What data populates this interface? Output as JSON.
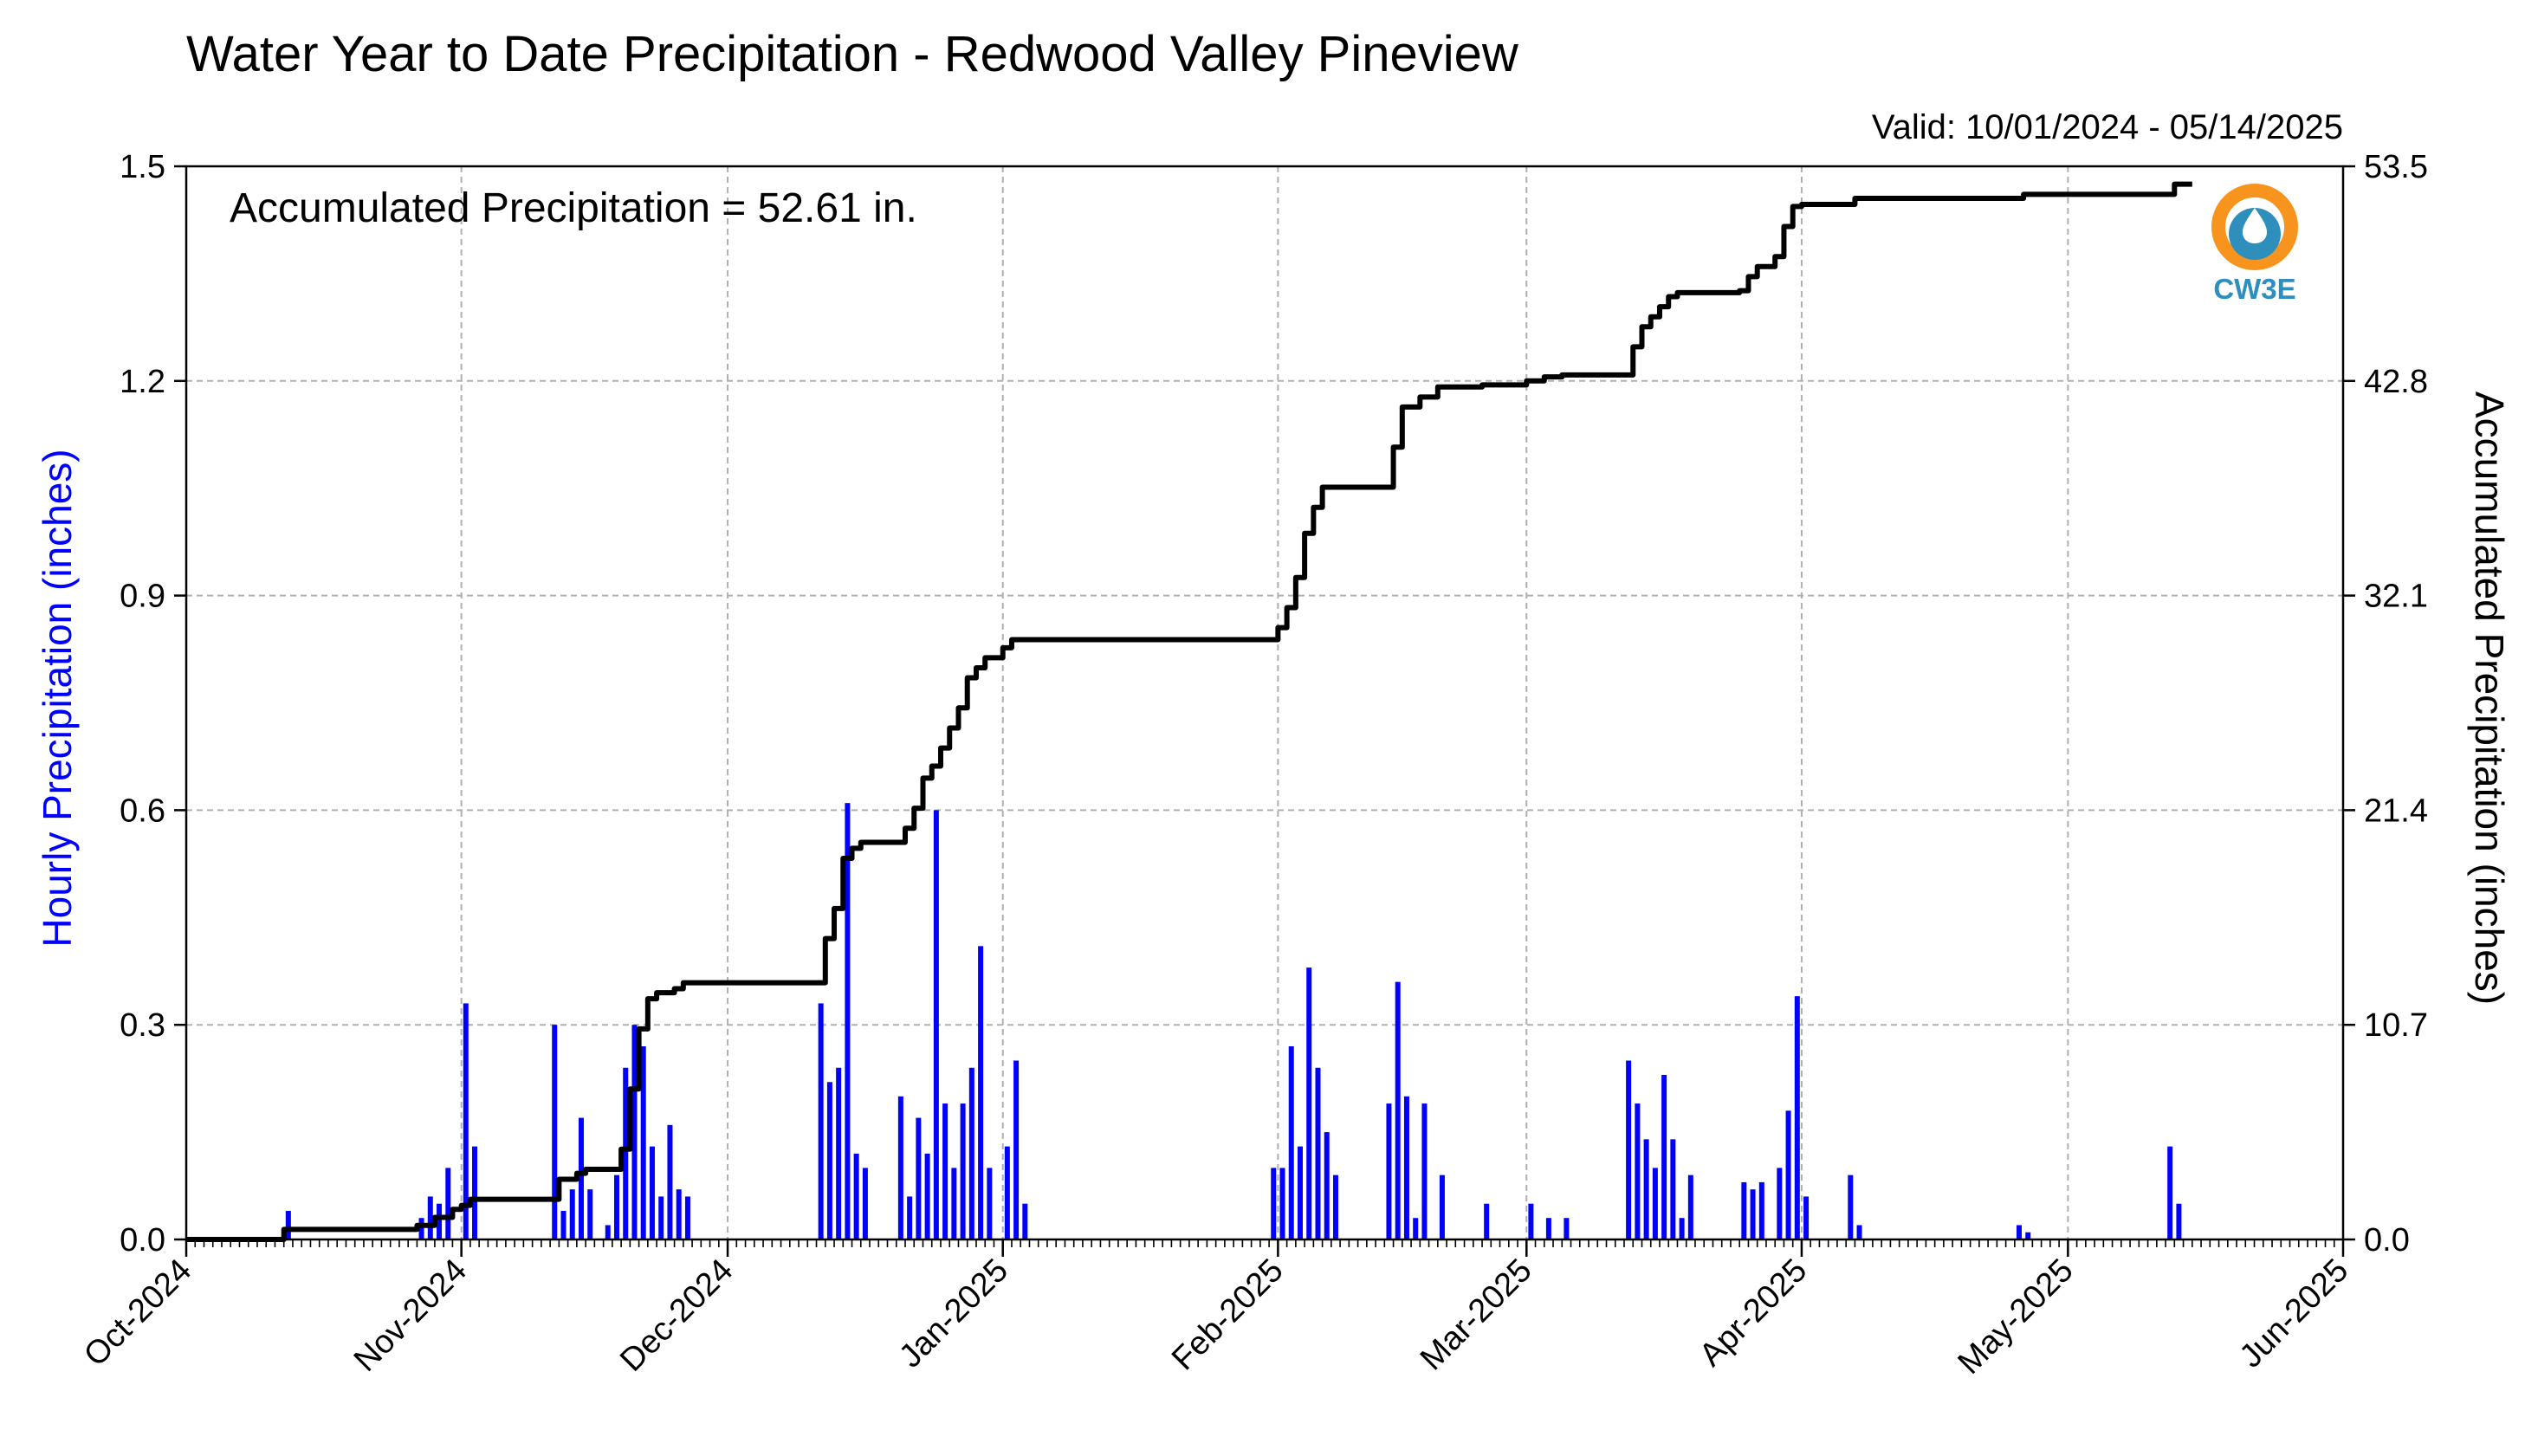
{
  "chart_data": {
    "type": "bar+line",
    "title": "Water Year to Date Precipitation - Redwood Valley Pineview",
    "valid_range": "Valid: 10/01/2024 - 05/14/2025",
    "annotation": "Accumulated Precipitation = 52.61 in.",
    "ylabel_left": "Hourly Precipitation (inches)",
    "ylabel_right": "Accumulated Precipitation (inches)",
    "xlim": [
      "2024-10-01",
      "2025-06-01"
    ],
    "ylim_left": [
      0,
      1.5
    ],
    "ylim_right": [
      0,
      53.5
    ],
    "grid": true,
    "x_ticks": [
      "Oct-2024",
      "Nov-2024",
      "Dec-2024",
      "Jan-2025",
      "Feb-2025",
      "Mar-2025",
      "Apr-2025",
      "May-2025",
      "Jun-2025"
    ],
    "y_ticks_left": [
      "0.0",
      "0.3",
      "0.6",
      "0.9",
      "1.2",
      "1.5"
    ],
    "y_ticks_right": [
      "0.0",
      "10.7",
      "21.4",
      "32.1",
      "42.8",
      "53.5"
    ],
    "colors": {
      "hourly": "#0000ff",
      "accumulated": "#000000",
      "grid": "#b0b0b0"
    },
    "logo": {
      "text": "CW3E",
      "colors": [
        "#f7941d",
        "#2e8fbd"
      ]
    },
    "series": [
      {
        "name": "Hourly Precipitation",
        "type": "bar",
        "axis": "left",
        "x": [
          "2024-10-12",
          "2024-10-27",
          "2024-10-28",
          "2024-10-29",
          "2024-10-30",
          "2024-11-01",
          "2024-11-02",
          "2024-11-11",
          "2024-11-12",
          "2024-11-13",
          "2024-11-14",
          "2024-11-15",
          "2024-11-17",
          "2024-11-18",
          "2024-11-19",
          "2024-11-20",
          "2024-11-21",
          "2024-11-22",
          "2024-11-23",
          "2024-11-24",
          "2024-11-25",
          "2024-11-26",
          "2024-12-11",
          "2024-12-12",
          "2024-12-13",
          "2024-12-14",
          "2024-12-15",
          "2024-12-16",
          "2024-12-20",
          "2024-12-21",
          "2024-12-22",
          "2024-12-23",
          "2024-12-24",
          "2024-12-25",
          "2024-12-26",
          "2024-12-27",
          "2024-12-28",
          "2024-12-29",
          "2024-12-30",
          "2025-01-01",
          "2025-01-02",
          "2025-01-03",
          "2025-01-31",
          "2025-02-01",
          "2025-02-02",
          "2025-02-03",
          "2025-02-04",
          "2025-02-05",
          "2025-02-06",
          "2025-02-07",
          "2025-02-13",
          "2025-02-14",
          "2025-02-15",
          "2025-02-16",
          "2025-02-17",
          "2025-02-19",
          "2025-02-24",
          "2025-03-01",
          "2025-03-03",
          "2025-03-05",
          "2025-03-12",
          "2025-03-13",
          "2025-03-14",
          "2025-03-15",
          "2025-03-16",
          "2025-03-17",
          "2025-03-18",
          "2025-03-19",
          "2025-03-25",
          "2025-03-26",
          "2025-03-27",
          "2025-03-29",
          "2025-03-30",
          "2025-03-31",
          "2025-04-01",
          "2025-04-06",
          "2025-04-07",
          "2025-04-25",
          "2025-04-26",
          "2025-05-12",
          "2025-05-13"
        ],
        "values": [
          0.04,
          0.03,
          0.06,
          0.05,
          0.1,
          0.33,
          0.13,
          0.3,
          0.04,
          0.07,
          0.17,
          0.07,
          0.02,
          0.09,
          0.24,
          0.3,
          0.27,
          0.13,
          0.06,
          0.16,
          0.07,
          0.06,
          0.33,
          0.22,
          0.24,
          0.61,
          0.12,
          0.1,
          0.2,
          0.06,
          0.17,
          0.12,
          0.6,
          0.19,
          0.1,
          0.19,
          0.24,
          0.41,
          0.1,
          0.13,
          0.25,
          0.05,
          0.1,
          0.1,
          0.27,
          0.13,
          0.38,
          0.24,
          0.15,
          0.09,
          0.19,
          0.36,
          0.2,
          0.03,
          0.19,
          0.09,
          0.05,
          0.05,
          0.03,
          0.03,
          0.25,
          0.19,
          0.14,
          0.1,
          0.23,
          0.14,
          0.03,
          0.09,
          0.08,
          0.07,
          0.08,
          0.1,
          0.18,
          0.34,
          0.06,
          0.09,
          0.02,
          0.02,
          0.01,
          0.13,
          0.05
        ]
      },
      {
        "name": "Accumulated Precipitation",
        "type": "line",
        "axis": "right",
        "x": [
          "2024-10-01",
          "2024-10-12",
          "2024-10-27",
          "2024-10-29",
          "2024-10-31",
          "2024-11-01",
          "2024-11-02",
          "2024-11-11",
          "2024-11-12",
          "2024-11-14",
          "2024-11-15",
          "2024-11-17",
          "2024-11-19",
          "2024-11-20",
          "2024-11-21",
          "2024-11-22",
          "2024-11-23",
          "2024-11-25",
          "2024-11-26",
          "2024-12-11",
          "2024-12-12",
          "2024-12-13",
          "2024-12-14",
          "2024-12-15",
          "2024-12-16",
          "2024-12-20",
          "2024-12-21",
          "2024-12-22",
          "2024-12-23",
          "2024-12-24",
          "2024-12-25",
          "2024-12-26",
          "2024-12-27",
          "2024-12-28",
          "2024-12-29",
          "2024-12-30",
          "2025-01-01",
          "2025-01-02",
          "2025-01-31",
          "2025-02-01",
          "2025-02-02",
          "2025-02-03",
          "2025-02-04",
          "2025-02-05",
          "2025-02-06",
          "2025-02-07",
          "2025-02-13",
          "2025-02-14",
          "2025-02-15",
          "2025-02-17",
          "2025-02-19",
          "2025-02-24",
          "2025-03-01",
          "2025-03-03",
          "2025-03-05",
          "2025-03-12",
          "2025-03-13",
          "2025-03-14",
          "2025-03-15",
          "2025-03-16",
          "2025-03-17",
          "2025-03-18",
          "2025-03-25",
          "2025-03-26",
          "2025-03-27",
          "2025-03-29",
          "2025-03-30",
          "2025-03-31",
          "2025-04-01",
          "2025-04-06",
          "2025-04-07",
          "2025-04-25",
          "2025-04-26",
          "2025-05-12",
          "2025-05-13"
        ],
        "values": [
          0.0,
          0.5,
          0.7,
          1.1,
          1.5,
          1.7,
          2.0,
          2.0,
          3.0,
          3.3,
          3.5,
          3.5,
          4.5,
          7.5,
          10.5,
          12.0,
          12.3,
          12.5,
          12.8,
          12.8,
          15.0,
          16.5,
          19.0,
          19.5,
          19.8,
          19.8,
          20.5,
          21.5,
          23.0,
          23.6,
          24.5,
          25.5,
          26.5,
          28.0,
          28.5,
          29.0,
          29.5,
          29.9,
          29.9,
          30.5,
          31.5,
          33.0,
          35.2,
          36.5,
          37.5,
          37.5,
          37.5,
          39.5,
          41.5,
          42.0,
          42.5,
          42.6,
          42.8,
          43.0,
          43.1,
          43.1,
          44.5,
          45.5,
          46.0,
          46.5,
          47.0,
          47.2,
          47.3,
          48.0,
          48.5,
          49.0,
          50.5,
          51.5,
          51.6,
          51.6,
          51.9,
          51.9,
          52.1,
          52.1,
          52.61
        ]
      }
    ]
  }
}
